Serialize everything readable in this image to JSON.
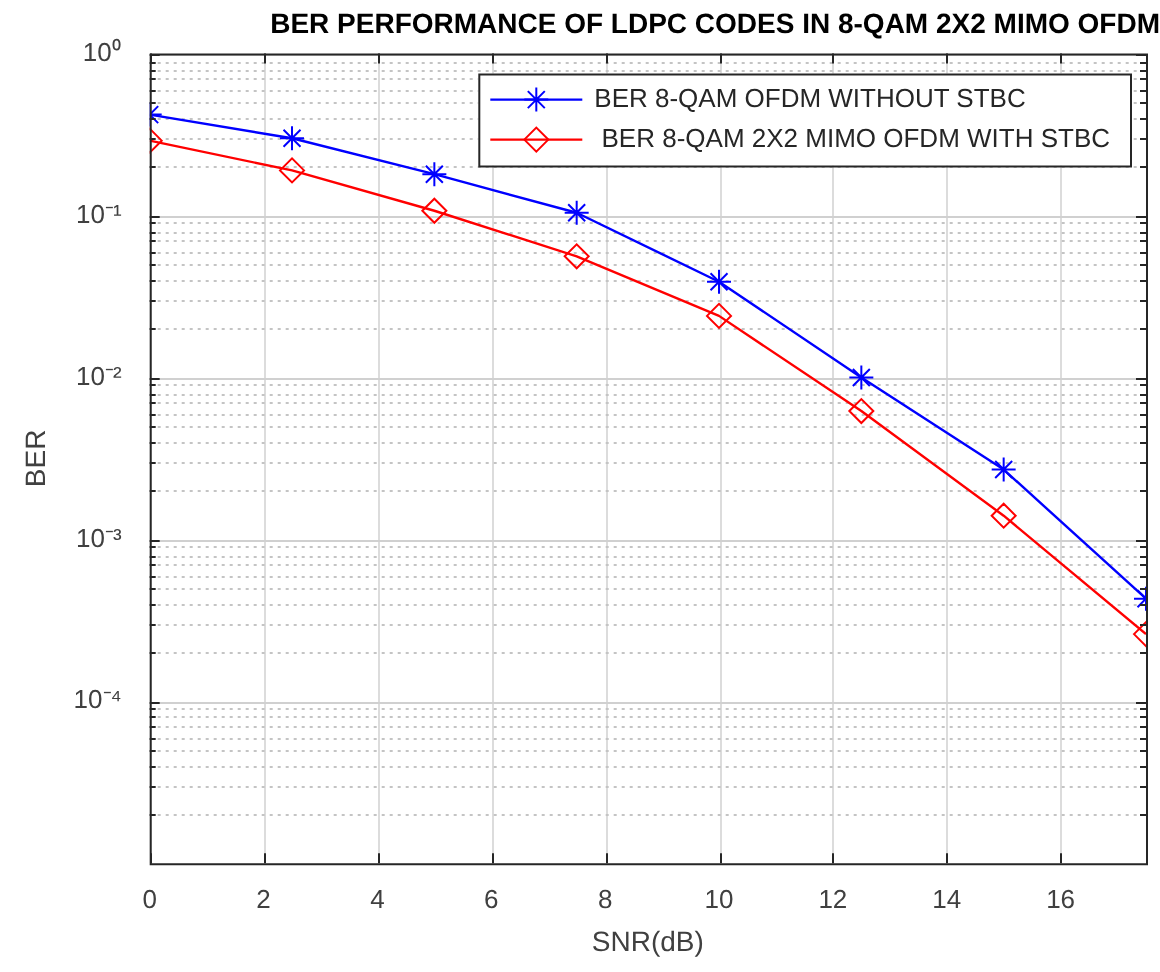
{
  "chart_data": {
    "type": "line",
    "title": "BER PERFORMANCE OF LDPC CODES IN 8-QAM 2X2 MIMO OFDM",
    "xlabel": "SNR(dB)",
    "ylabel": "BER",
    "x": [
      0,
      2.5,
      5,
      7.5,
      10,
      12.5,
      15,
      17.5
    ],
    "series": [
      {
        "name": "BER 8-QAM OFDM WITHOUT STBC",
        "color": "#0000ff",
        "marker": "cross",
        "values": [
          0.42,
          0.3,
          0.18,
          0.104,
          0.039,
          0.01,
          0.0027,
          0.00043
        ]
      },
      {
        "name": " BER 8-QAM 2X2 MIMO OFDM WITH STBC",
        "color": "#ff0000",
        "marker": "diamond",
        "values": [
          0.29,
          0.19,
          0.107,
          0.056,
          0.024,
          0.0062,
          0.0014,
          0.00026
        ]
      }
    ],
    "log": "y",
    "xlim": [
      0,
      17.5
    ],
    "ylim": [
      1e-05,
      1
    ],
    "xticks": [
      0,
      2,
      4,
      6,
      8,
      10,
      12,
      14,
      16
    ],
    "yticks": [
      {
        "value": 1,
        "label": "10⁰"
      },
      {
        "value": 0.1,
        "label": "10⁻¹"
      },
      {
        "value": 0.01,
        "label": "10⁻²"
      },
      {
        "value": 0.001,
        "label": "10⁻³"
      },
      {
        "value": 0.0001,
        "label": "10⁻⁴"
      },
      {
        "value": 0.9,
        "label": null
      },
      {
        "value": 0.8,
        "label": null
      },
      {
        "value": 0.7,
        "label": null
      },
      {
        "value": 0.6,
        "label": null
      },
      {
        "value": 0.5,
        "label": null
      },
      {
        "value": 0.4,
        "label": null
      },
      {
        "value": 0.3,
        "label": null
      },
      {
        "value": 0.2,
        "label": null
      },
      {
        "value": 0.09,
        "label": null
      },
      {
        "value": 0.08,
        "label": null
      },
      {
        "value": 0.07,
        "label": null
      },
      {
        "value": 0.06,
        "label": null
      },
      {
        "value": 0.05,
        "label": null
      },
      {
        "value": 0.04,
        "label": null
      },
      {
        "value": 0.03,
        "label": null
      },
      {
        "value": 0.02,
        "label": null
      },
      {
        "value": 0.009,
        "label": null
      },
      {
        "value": 0.008,
        "label": null
      },
      {
        "value": 0.007,
        "label": null
      },
      {
        "value": 0.006,
        "label": null
      },
      {
        "value": 0.005,
        "label": null
      },
      {
        "value": 0.004,
        "label": null
      },
      {
        "value": 0.003,
        "label": null
      },
      {
        "value": 0.002,
        "label": null
      },
      {
        "value": 0.0009,
        "label": null
      },
      {
        "value": 0.0008,
        "label": null
      },
      {
        "value": 0.0007,
        "label": null
      },
      {
        "value": 0.0006,
        "label": null
      },
      {
        "value": 0.0005,
        "label": null
      },
      {
        "value": 0.0004,
        "label": null
      },
      {
        "value": 0.0003,
        "label": null
      },
      {
        "value": 0.0002,
        "label": null
      },
      {
        "value": 9e-05,
        "label": null
      },
      {
        "value": 8e-05,
        "label": null
      },
      {
        "value": 7e-05,
        "label": null
      },
      {
        "value": 6e-05,
        "label": null
      },
      {
        "value": 5e-05,
        "label": null
      },
      {
        "value": 4e-05,
        "label": null
      },
      {
        "value": 3e-05,
        "label": null
      },
      {
        "value": 2e-05,
        "label": null
      }
    ],
    "grid": true,
    "legend": "top right",
    "line_style": "solid"
  }
}
